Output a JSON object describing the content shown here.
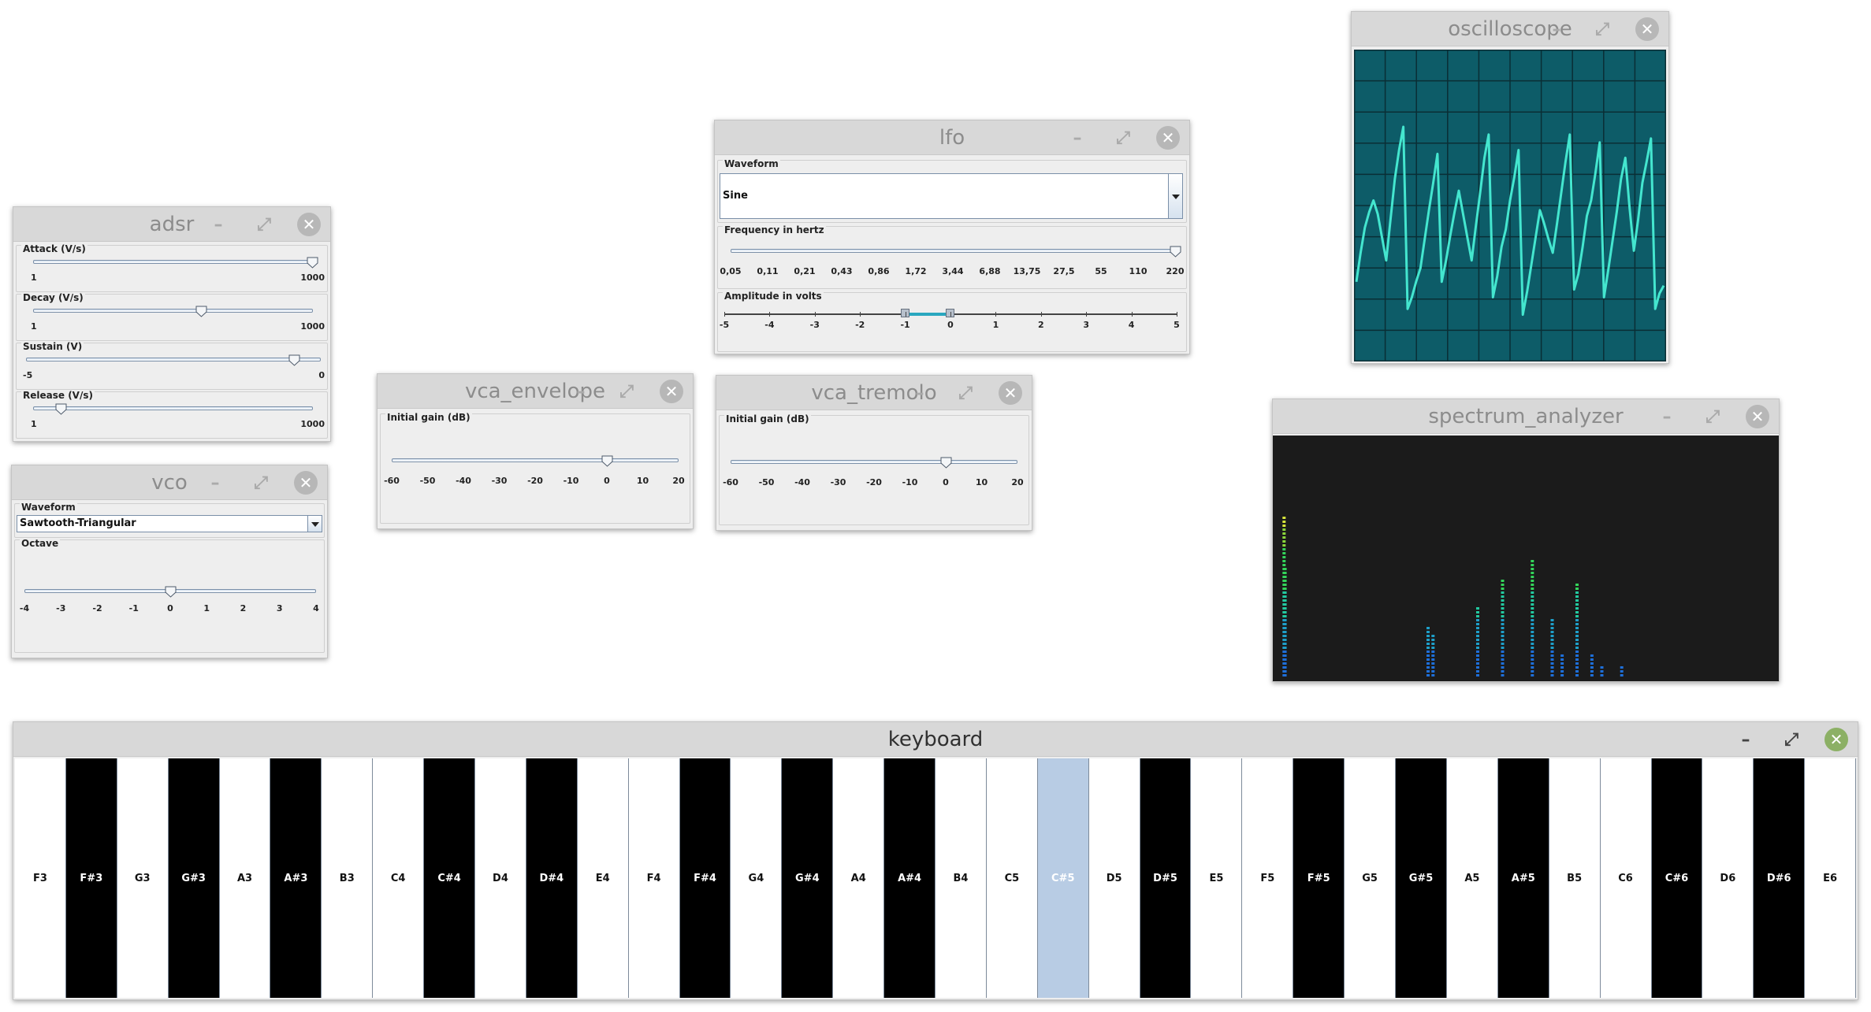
{
  "windows": {
    "adsr": {
      "title": "adsr",
      "attack": {
        "label": "Attack (V/s)",
        "min": "1",
        "max": "1000",
        "value_fraction": 0.999
      },
      "decay": {
        "label": "Decay (V/s)",
        "min": "1",
        "max": "1000",
        "value_fraction": 0.6
      },
      "sustain": {
        "label": "Sustain (V)",
        "min": "-5",
        "max": "0",
        "value_fraction": 0.91
      },
      "release": {
        "label": "Release (V/s)",
        "min": "1",
        "max": "1000",
        "value_fraction": 0.1
      }
    },
    "vco": {
      "title": "vco",
      "waveform": {
        "label": "Waveform",
        "value": "Sawtooth-Triangular"
      },
      "octave": {
        "label": "Octave",
        "ticks": [
          "-4",
          "-3",
          "-2",
          "-1",
          "0",
          "1",
          "2",
          "3",
          "4"
        ],
        "value": 0
      }
    },
    "vca_envelope": {
      "title": "vca_envelope",
      "gain": {
        "label": "Initial gain (dB)",
        "ticks": [
          "-60",
          "-50",
          "-40",
          "-30",
          "-20",
          "-10",
          "0",
          "10",
          "20"
        ],
        "value": 0
      }
    },
    "vca_tremolo": {
      "title": "vca_tremolo",
      "gain": {
        "label": "Initial gain (dB)",
        "ticks": [
          "-60",
          "-50",
          "-40",
          "-30",
          "-20",
          "-10",
          "0",
          "10",
          "20"
        ],
        "value": 0
      }
    },
    "lfo": {
      "title": "lfo",
      "waveform": {
        "label": "Waveform",
        "value": "Sine"
      },
      "frequency": {
        "label": "Frequency in hertz",
        "ticks": [
          "0,05",
          "0,11",
          "0,21",
          "0,43",
          "0,86",
          "1,72",
          "3,44",
          "6,88",
          "13,75",
          "27,5",
          "55",
          "110",
          "220"
        ],
        "value_index": 12
      },
      "amplitude": {
        "label": "Amplitude in volts",
        "ticks": [
          "-5",
          "-4",
          "-3",
          "-2",
          "-1",
          "0",
          "1",
          "2",
          "3",
          "4",
          "5"
        ],
        "range_low": -1,
        "range_high": 0
      }
    },
    "oscilloscope": {
      "title": "oscilloscope",
      "screen_color": "#0d5c68",
      "grid_color": "#0a2e35",
      "trace_color": "#44e6cf",
      "trace": [
        0.2,
        0.35,
        0.48,
        0.56,
        0.62,
        0.55,
        0.43,
        0.31,
        0.52,
        0.73,
        0.88,
        1.0,
        0.06,
        0.12,
        0.2,
        0.27,
        0.42,
        0.57,
        0.71,
        0.86,
        0.2,
        0.31,
        0.44,
        0.56,
        0.67,
        0.55,
        0.43,
        0.31,
        0.49,
        0.66,
        0.84,
        0.96,
        0.12,
        0.23,
        0.38,
        0.47,
        0.62,
        0.74,
        0.88,
        0.03,
        0.15,
        0.29,
        0.43,
        0.57,
        0.5,
        0.42,
        0.35,
        0.5,
        0.66,
        0.82,
        0.96,
        0.16,
        0.24,
        0.38,
        0.54,
        0.62,
        0.76,
        0.92,
        0.12,
        0.26,
        0.41,
        0.56,
        0.73,
        0.84,
        0.58,
        0.36,
        0.52,
        0.71,
        0.82,
        0.94,
        0.06,
        0.14,
        0.18
      ]
    },
    "spectrum_analyzer": {
      "title": "spectrum_analyzer",
      "background": "#1b1b1b",
      "bars": [
        [
          0.01,
          0.69
        ],
        [
          0.012,
          0.47
        ],
        [
          0.3,
          0.22
        ],
        [
          0.31,
          0.19
        ],
        [
          0.4,
          0.3
        ],
        [
          0.45,
          0.43
        ],
        [
          0.51,
          0.51
        ],
        [
          0.55,
          0.25
        ],
        [
          0.57,
          0.1
        ],
        [
          0.6,
          0.41
        ],
        [
          0.63,
          0.1
        ],
        [
          0.65,
          0.06
        ],
        [
          0.69,
          0.06
        ]
      ]
    },
    "keyboard": {
      "title": "keyboard",
      "keys": [
        {
          "note": "F3",
          "black": false
        },
        {
          "note": "F#3",
          "black": true
        },
        {
          "note": "G3",
          "black": false
        },
        {
          "note": "G#3",
          "black": true
        },
        {
          "note": "A3",
          "black": false
        },
        {
          "note": "A#3",
          "black": true
        },
        {
          "note": "B3",
          "black": false
        },
        {
          "note": "C4",
          "black": false
        },
        {
          "note": "C#4",
          "black": true
        },
        {
          "note": "D4",
          "black": false
        },
        {
          "note": "D#4",
          "black": true
        },
        {
          "note": "E4",
          "black": false
        },
        {
          "note": "F4",
          "black": false
        },
        {
          "note": "F#4",
          "black": true
        },
        {
          "note": "G4",
          "black": false
        },
        {
          "note": "G#4",
          "black": true
        },
        {
          "note": "A4",
          "black": false
        },
        {
          "note": "A#4",
          "black": true
        },
        {
          "note": "B4",
          "black": false
        },
        {
          "note": "C5",
          "black": false
        },
        {
          "note": "C#5",
          "black": true,
          "pressed": true
        },
        {
          "note": "D5",
          "black": false
        },
        {
          "note": "D#5",
          "black": true
        },
        {
          "note": "E5",
          "black": false
        },
        {
          "note": "F5",
          "black": false
        },
        {
          "note": "F#5",
          "black": true
        },
        {
          "note": "G5",
          "black": false
        },
        {
          "note": "G#5",
          "black": true
        },
        {
          "note": "A5",
          "black": false
        },
        {
          "note": "A#5",
          "black": true
        },
        {
          "note": "B5",
          "black": false
        },
        {
          "note": "C6",
          "black": false
        },
        {
          "note": "C#6",
          "black": true
        },
        {
          "note": "D6",
          "black": false
        },
        {
          "note": "D#6",
          "black": true
        },
        {
          "note": "E6",
          "black": false
        }
      ]
    }
  }
}
